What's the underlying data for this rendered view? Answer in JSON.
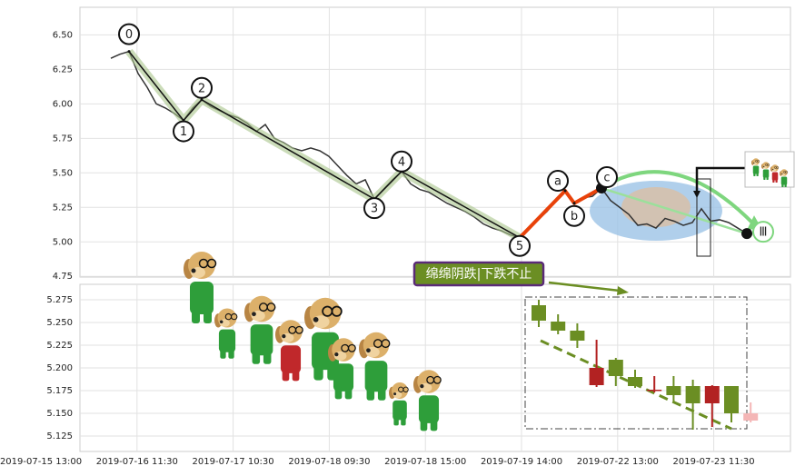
{
  "chart_data": [
    {
      "type": "line",
      "ylim": [
        4.745,
        6.7
      ],
      "yticks": [
        {
          "value": 4.75,
          "label": "4.75"
        },
        {
          "value": 5.0,
          "label": "5.00"
        },
        5.25,
        {
          "value": 5.5,
          "label": "5.50"
        },
        5.75,
        {
          "value": 6.0,
          "label": "6.00"
        },
        6.25,
        {
          "value": 6.5,
          "label": "6.50"
        }
      ],
      "grid": true,
      "series": [
        {
          "color": "#333333",
          "values": [
            6.33,
            6.36,
            6.38,
            6.22,
            6.12,
            6.0,
            5.97,
            5.93,
            5.88,
            5.97,
            6.03,
            5.98,
            5.95,
            5.92,
            5.9,
            5.86,
            5.8,
            5.85,
            5.75,
            5.72,
            5.68,
            5.66,
            5.68,
            5.66,
            5.62,
            5.55,
            5.48,
            5.42,
            5.45,
            5.31,
            5.38,
            5.45,
            5.51,
            5.42,
            5.38,
            5.36,
            5.32,
            5.28,
            5.25,
            5.22,
            5.18,
            5.13,
            5.1,
            5.08,
            5.05,
            5.03,
            5.1,
            5.16,
            5.22,
            5.3,
            5.37,
            5.28,
            5.32,
            5.33,
            5.39,
            5.3,
            5.25,
            5.2,
            5.12,
            5.13,
            5.1,
            5.17,
            5.15,
            5.12,
            5.14,
            5.24,
            5.15,
            5.16,
            5.14,
            5.1,
            5.06
          ]
        }
      ],
      "waves": [
        {
          "label": "0",
          "x": 2,
          "value": 6.38
        },
        {
          "label": "1",
          "x": 8,
          "value": 5.88
        },
        {
          "label": "2",
          "x": 10,
          "value": 6.03
        },
        {
          "label": "3",
          "x": 29,
          "value": 5.31
        },
        {
          "label": "4",
          "x": 32,
          "value": 5.51
        },
        {
          "label": "5",
          "x": 45,
          "value": 5.03
        },
        {
          "label": "a",
          "x": 50,
          "value": 5.37
        },
        {
          "label": "b",
          "x": 51,
          "value": 5.28
        },
        {
          "label": "c",
          "x": 54,
          "value": 5.39
        },
        {
          "label": "Ⅲ",
          "x": 70,
          "value": 5.06
        }
      ],
      "annotation": "绵绵阴跌|下跌不止"
    },
    {
      "type": "candlestick",
      "ylim": [
        5.108,
        5.292
      ],
      "yticks": [
        5.125,
        {
          "value": 5.15,
          "label": "5.150"
        },
        5.175,
        {
          "value": 5.2,
          "label": "5.200"
        },
        5.225,
        {
          "value": 5.25,
          "label": "5.250"
        },
        5.275
      ],
      "grid": true,
      "open": [
        5.269,
        5.251,
        5.241,
        5.181,
        5.209,
        5.19,
        5.175,
        5.18,
        5.18,
        5.161,
        5.18,
        5.142
      ],
      "close": [
        5.252,
        5.241,
        5.23,
        5.2,
        5.191,
        5.18,
        5.176,
        5.17,
        5.161,
        5.18,
        5.15,
        5.15
      ],
      "high": [
        5.275,
        5.259,
        5.249,
        5.231,
        5.211,
        5.198,
        5.191,
        5.191,
        5.187,
        5.181,
        5.18,
        5.162
      ],
      "low": [
        5.245,
        5.237,
        5.222,
        5.179,
        5.18,
        5.178,
        5.173,
        5.161,
        5.132,
        5.135,
        5.14,
        5.14
      ],
      "colors": [
        "#6b8e23",
        "#6b8e23",
        "#6b8e23",
        "#b22222",
        "#6b8e23",
        "#6b8e23",
        "#b22222",
        "#6b8e23",
        "#6b8e23",
        "#b22222",
        "#6b8e23",
        "#f4b6b6"
      ],
      "xtick_labels": [
        "2019-07-15 13:00",
        "2019-07-16 11:30",
        "2019-07-17 10:30",
        "2019-07-18 09:30",
        "2019-07-18 15:00",
        "2019-07-19 14:00",
        "2019-07-22 13:00",
        "2019-07-23 11:30"
      ]
    }
  ]
}
